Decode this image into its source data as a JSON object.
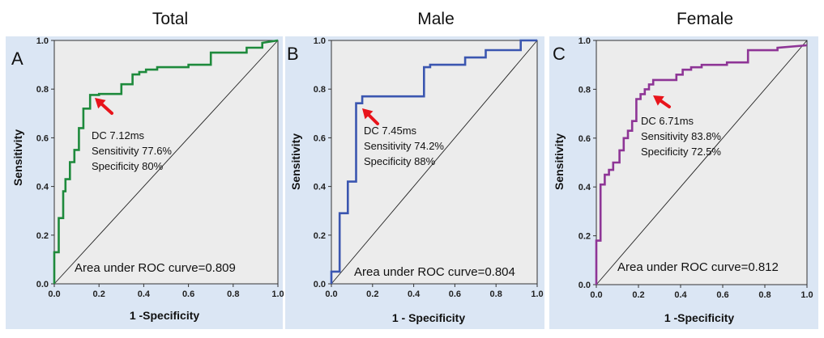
{
  "chart_data": [
    {
      "type": "line",
      "panel_letter": "A",
      "title": "Total",
      "xlabel": "1 -Specificity",
      "ylabel": "Sensitivity",
      "xlim": [
        0,
        1
      ],
      "ylim": [
        0,
        1
      ],
      "xticks": [
        "0.0",
        "0.2",
        "0.4",
        "0.6",
        "0.8",
        "1.0"
      ],
      "yticks": [
        "0.0",
        "0.2",
        "0.4",
        "0.6",
        "0.8",
        "1.0"
      ],
      "curve_color": "#1e8a3c",
      "series": [
        {
          "name": "ROC",
          "x": [
            0,
            0,
            0.02,
            0.02,
            0.04,
            0.04,
            0.05,
            0.05,
            0.07,
            0.07,
            0.09,
            0.09,
            0.11,
            0.11,
            0.13,
            0.13,
            0.16,
            0.16,
            0.2,
            0.2,
            0.3,
            0.3,
            0.35,
            0.35,
            0.38,
            0.38,
            0.41,
            0.41,
            0.46,
            0.46,
            0.6,
            0.6,
            0.7,
            0.7,
            0.86,
            0.86,
            0.93,
            0.93,
            1.0
          ],
          "y": [
            0,
            0.13,
            0.13,
            0.27,
            0.27,
            0.38,
            0.38,
            0.43,
            0.43,
            0.5,
            0.5,
            0.55,
            0.55,
            0.64,
            0.64,
            0.72,
            0.72,
            0.776,
            0.776,
            0.78,
            0.78,
            0.82,
            0.82,
            0.86,
            0.86,
            0.87,
            0.87,
            0.88,
            0.88,
            0.89,
            0.89,
            0.9,
            0.9,
            0.95,
            0.95,
            0.97,
            0.97,
            0.99,
            1.0
          ]
        }
      ],
      "reference_line": {
        "x": [
          0,
          1
        ],
        "y": [
          0,
          1
        ]
      },
      "cutoff_point": {
        "x": 0.2,
        "y": 0.776
      },
      "annotation": [
        "DC 7.12ms",
        "Sensitivity 77.6%",
        "Specificity 80%"
      ],
      "auc_text": "Area under ROC curve=0.809"
    },
    {
      "type": "line",
      "panel_letter": "B",
      "title": "Male",
      "xlabel": "1 - Specificity",
      "ylabel": "Sensitivity",
      "xlim": [
        0,
        1
      ],
      "ylim": [
        0,
        1
      ],
      "xticks": [
        "0.0",
        "0.2",
        "0.4",
        "0.6",
        "0.8",
        "1.0"
      ],
      "yticks": [
        "0.0",
        "0.2",
        "0.4",
        "0.6",
        "0.8",
        "1.0"
      ],
      "curve_color": "#3b56b0",
      "series": [
        {
          "name": "ROC",
          "x": [
            0,
            0,
            0.04,
            0.04,
            0.08,
            0.08,
            0.12,
            0.12,
            0.15,
            0.15,
            0.45,
            0.45,
            0.48,
            0.48,
            0.65,
            0.65,
            0.75,
            0.75,
            0.92,
            0.92,
            1.0
          ],
          "y": [
            0,
            0.05,
            0.05,
            0.29,
            0.29,
            0.42,
            0.42,
            0.742,
            0.742,
            0.77,
            0.77,
            0.89,
            0.89,
            0.9,
            0.9,
            0.93,
            0.93,
            0.96,
            0.96,
            1.0,
            1.0
          ]
        }
      ],
      "reference_line": {
        "x": [
          0,
          1
        ],
        "y": [
          0,
          1
        ]
      },
      "cutoff_point": {
        "x": 0.12,
        "y": 0.742
      },
      "annotation": [
        "DC 7.45ms",
        "Sensitivity 74.2%",
        "Specificity 88%"
      ],
      "auc_text": "Area under ROC curve=0.804"
    },
    {
      "type": "line",
      "panel_letter": "C",
      "title": "Female",
      "xlabel": "1 -Specificity",
      "ylabel": "Sensitivity",
      "xlim": [
        0,
        1
      ],
      "ylim": [
        0,
        1
      ],
      "xticks": [
        "0.0",
        "0.2",
        "0.4",
        "0.6",
        "0.8",
        "1.0"
      ],
      "yticks": [
        "0.0",
        "0.2",
        "0.4",
        "0.6",
        "0.8",
        "1.0"
      ],
      "curve_color": "#8e3596",
      "series": [
        {
          "name": "ROC",
          "x": [
            0,
            0,
            0.02,
            0.02,
            0.04,
            0.04,
            0.06,
            0.06,
            0.08,
            0.08,
            0.11,
            0.11,
            0.13,
            0.13,
            0.15,
            0.15,
            0.17,
            0.17,
            0.19,
            0.19,
            0.21,
            0.21,
            0.23,
            0.23,
            0.25,
            0.25,
            0.27,
            0.27,
            0.38,
            0.38,
            0.41,
            0.41,
            0.45,
            0.45,
            0.5,
            0.5,
            0.62,
            0.62,
            0.72,
            0.72,
            0.86,
            0.86,
            1.0
          ],
          "y": [
            0,
            0.18,
            0.18,
            0.41,
            0.41,
            0.45,
            0.45,
            0.47,
            0.47,
            0.5,
            0.5,
            0.55,
            0.55,
            0.6,
            0.6,
            0.63,
            0.63,
            0.67,
            0.67,
            0.76,
            0.76,
            0.78,
            0.78,
            0.8,
            0.8,
            0.82,
            0.82,
            0.838,
            0.838,
            0.86,
            0.86,
            0.88,
            0.88,
            0.89,
            0.89,
            0.9,
            0.9,
            0.91,
            0.91,
            0.96,
            0.96,
            0.97,
            0.98
          ]
        }
      ],
      "reference_line": {
        "x": [
          0,
          1
        ],
        "y": [
          0,
          1
        ]
      },
      "cutoff_point": {
        "x": 0.275,
        "y": 0.838
      },
      "annotation": [
        "DC 6.71ms",
        "Sensitivity 83.8%",
        "Specificity 72.5%"
      ],
      "auc_text": "Area under ROC curve=0.812"
    }
  ]
}
